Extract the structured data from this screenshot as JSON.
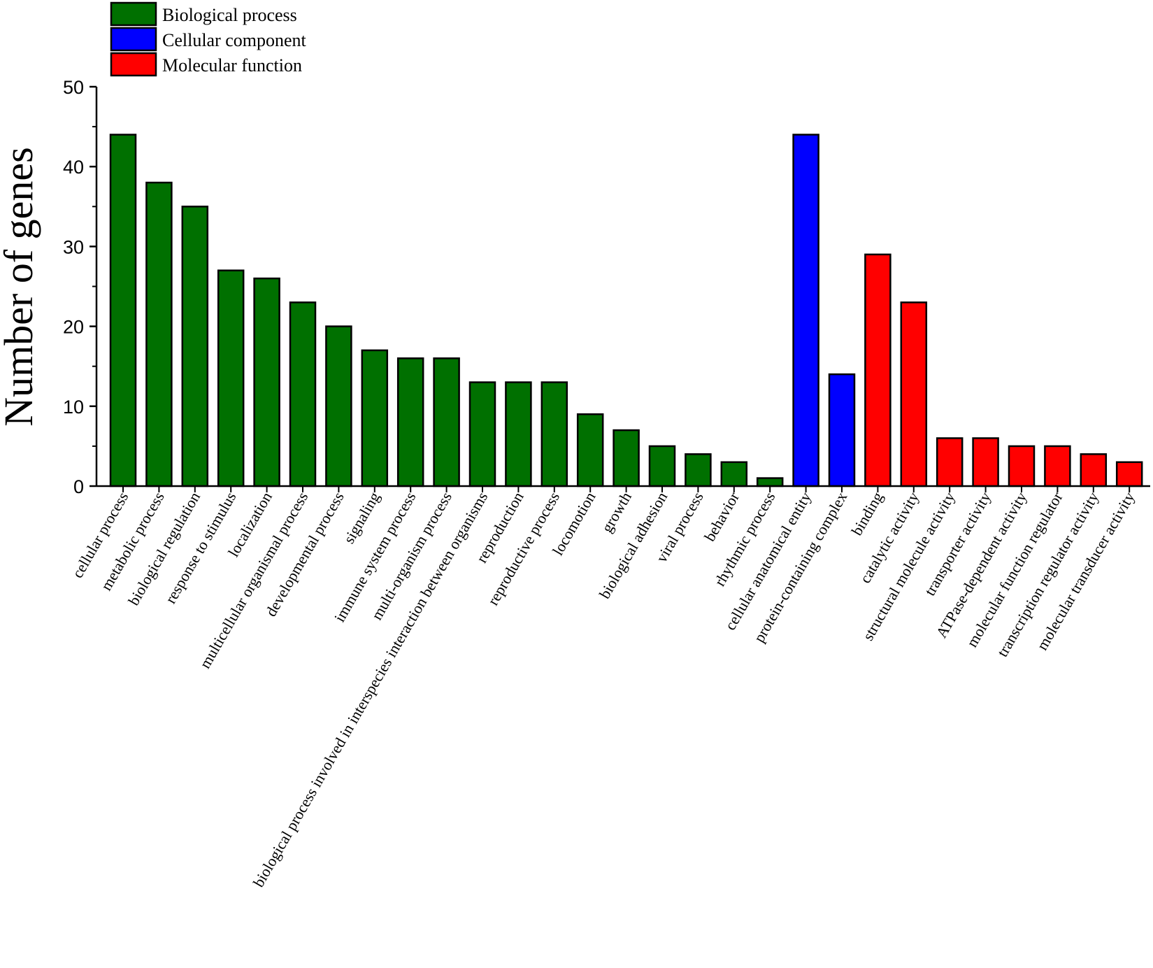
{
  "chart_data": {
    "type": "bar",
    "title": "",
    "xlabel": "",
    "ylabel": "Number of genes",
    "ylim": [
      0,
      50
    ],
    "yticks": [
      0,
      10,
      20,
      30,
      40,
      50
    ],
    "grid": false,
    "legend_position": "top-left",
    "categories": [
      "cellular process",
      "metabolic process",
      "biological regulation",
      "response to stimulus",
      "localization",
      "multicellular organismal process",
      "developmental process",
      "signaling",
      "immune system process",
      "multi-organism process",
      "biological process involved in interspecies interaction between organisms",
      "reproduction",
      "reproductive process",
      "locomotion",
      "growth",
      "biological adhesion",
      "viral process",
      "behavior",
      "rhythmic process",
      "cellular anatomical entity",
      "protein-containing complex",
      "binding",
      "catalytic activity",
      "structural molecule activity",
      "transporter activity",
      "ATPase-dependent activity",
      "molecular function regulator",
      "transcription regulator activity",
      "molecular transducer activity"
    ],
    "values": [
      44,
      38,
      35,
      27,
      26,
      23,
      20,
      17,
      16,
      16,
      13,
      13,
      13,
      9,
      7,
      5,
      4,
      3,
      1,
      44,
      14,
      29,
      23,
      6,
      6,
      5,
      5,
      4,
      3
    ],
    "groups": [
      "Biological process",
      "Biological process",
      "Biological process",
      "Biological process",
      "Biological process",
      "Biological process",
      "Biological process",
      "Biological process",
      "Biological process",
      "Biological process",
      "Biological process",
      "Biological process",
      "Biological process",
      "Biological process",
      "Biological process",
      "Biological process",
      "Biological process",
      "Biological process",
      "Biological process",
      "Cellular component",
      "Cellular component",
      "Molecular function",
      "Molecular function",
      "Molecular function",
      "Molecular function",
      "Molecular function",
      "Molecular function",
      "Molecular function",
      "Molecular function"
    ],
    "legend": [
      {
        "label": "Biological process",
        "color": "#007000"
      },
      {
        "label": "Cellular component",
        "color": "#0000ff"
      },
      {
        "label": "Molecular function",
        "color": "#ff0000"
      }
    ]
  }
}
